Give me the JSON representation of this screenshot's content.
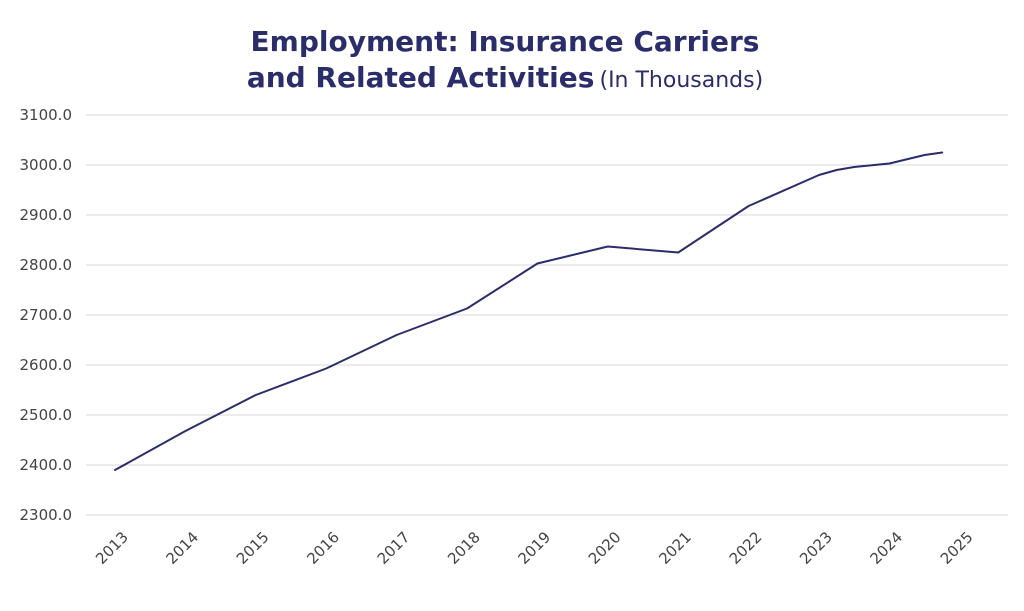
{
  "chart_data": {
    "type": "line",
    "title_line1": "Employment: Insurance Carriers",
    "title_line2": "and Related Activities",
    "subtitle": "(In Thousands)",
    "xlabel": "",
    "ylabel": "",
    "ylim": [
      2300,
      3100
    ],
    "yticks": [
      "2300.0",
      "2400.0",
      "2500.0",
      "2600.0",
      "2700.0",
      "2800.0",
      "2900.0",
      "3000.0",
      "3100.0"
    ],
    "xticks": [
      "2013",
      "2014",
      "2015",
      "2016",
      "2017",
      "2018",
      "2019",
      "2020",
      "2021",
      "2022",
      "2023",
      "2024",
      "2025"
    ],
    "grid": true,
    "line_color": "#2b2d6b",
    "series": [
      {
        "x": [
          2013.0,
          2014.0,
          2015.0,
          2016.0,
          2017.0,
          2018.0,
          2019.0,
          2020.0,
          2021.0,
          2022.0,
          2023.0,
          2023.25,
          2023.5,
          2024.0,
          2024.5,
          2024.75
        ],
        "values": [
          2390,
          2468,
          2540,
          2593,
          2660,
          2713,
          2803,
          2837,
          2825,
          2918,
          2980,
          2990,
          2996,
          3003,
          3020,
          3025
        ]
      }
    ]
  }
}
